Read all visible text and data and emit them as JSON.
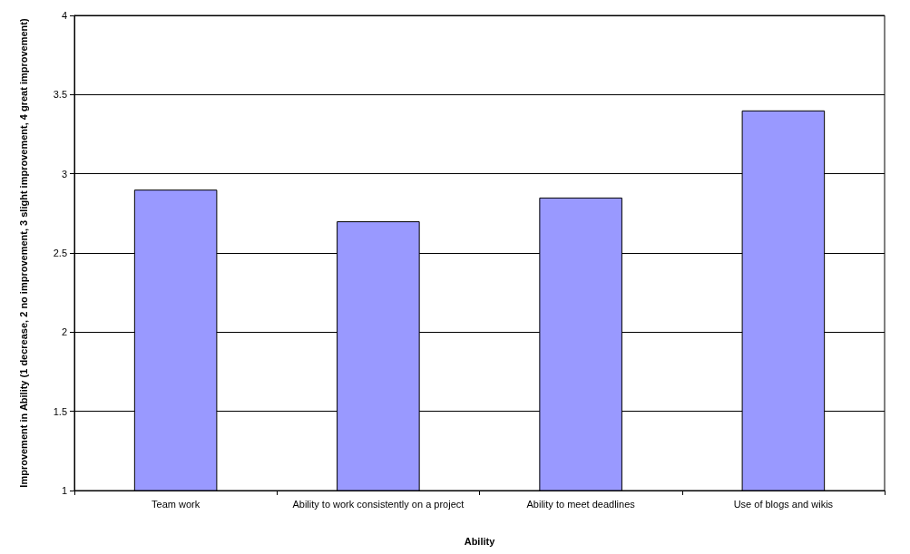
{
  "chart_data": {
    "type": "bar",
    "xlabel": "Ability",
    "ylabel": "Improvement in Ability (1 decrease, 2 no improvement, 3 slight improvement, 4 great improvement)",
    "categories": [
      "Team work",
      "Ability to work consistently on a project",
      "Ability to meet deadlines",
      "Use of blogs and wikis"
    ],
    "values": [
      2.9,
      2.7,
      2.85,
      3.4
    ],
    "color": "#9999ff",
    "ylim": [
      1,
      4
    ],
    "yticks": [
      1,
      1.5,
      2,
      2.5,
      3,
      3.5,
      4
    ],
    "grid": "y"
  }
}
